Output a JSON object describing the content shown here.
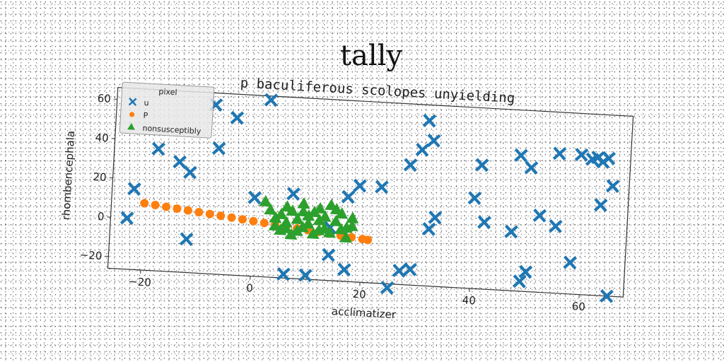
{
  "title": "tally",
  "chart_data": {
    "type": "scatter",
    "subtitle": "p baculiferous scolopes unyielding",
    "xlabel": "acclimatizer",
    "ylabel": "rhombencephala",
    "xlim": [
      -26,
      68
    ],
    "ylim": [
      -26,
      66
    ],
    "xticks": [
      -20,
      0,
      20,
      40,
      60
    ],
    "yticks": [
      -20,
      0,
      20,
      40,
      60
    ],
    "grid": false,
    "legend": {
      "title": "pixel",
      "placement": "top-left"
    },
    "series": [
      {
        "name": "u",
        "marker": "x",
        "color": "#1f77b4",
        "points": [
          [
            -22,
            15
          ],
          [
            -23,
            0
          ],
          [
            -18,
            36
          ],
          [
            -14,
            30
          ],
          [
            -12,
            25
          ],
          [
            -12,
            -9
          ],
          [
            -8,
            60
          ],
          [
            -7,
            38
          ],
          [
            -4,
            54
          ],
          [
            2,
            64
          ],
          [
            0,
            14
          ],
          [
            7,
            17
          ],
          [
            6,
            -24
          ],
          [
            10,
            -24
          ],
          [
            14,
            -13
          ],
          [
            14,
            1
          ],
          [
            17,
            17
          ],
          [
            19,
            23
          ],
          [
            23,
            23
          ],
          [
            17,
            -20
          ],
          [
            25,
            -28
          ],
          [
            27,
            -19
          ],
          [
            28,
            35
          ],
          [
            29,
            -18
          ],
          [
            30,
            43
          ],
          [
            31,
            58
          ],
          [
            32,
            48
          ],
          [
            32,
            3
          ],
          [
            33,
            9
          ],
          [
            40,
            20
          ],
          [
            41,
            37
          ],
          [
            42,
            8
          ],
          [
            47,
            4
          ],
          [
            49,
            -21
          ],
          [
            50,
            -16
          ],
          [
            48,
            43
          ],
          [
            50,
            37
          ],
          [
            52,
            13
          ],
          [
            55,
            8
          ],
          [
            55,
            45
          ],
          [
            58,
            -10
          ],
          [
            59,
            45
          ],
          [
            61,
            43
          ],
          [
            62,
            44
          ],
          [
            63,
            42
          ],
          [
            64,
            44
          ],
          [
            63,
            20
          ],
          [
            65,
            30
          ],
          [
            65,
            -26
          ]
        ]
      },
      {
        "name": "P",
        "marker": "o",
        "color": "#ff7f0e",
        "points": [
          [
            -20,
            8
          ],
          [
            -18,
            7.4
          ],
          [
            -16,
            6.8
          ],
          [
            -14,
            6.2
          ],
          [
            -12,
            5.6
          ],
          [
            -10,
            5
          ],
          [
            -8,
            4.4
          ],
          [
            -6,
            3.8
          ],
          [
            -4,
            3.2
          ],
          [
            -2,
            2.6
          ],
          [
            0,
            2
          ],
          [
            2,
            1.4
          ],
          [
            4,
            0.8
          ],
          [
            6,
            0.2
          ],
          [
            8,
            -0.4
          ],
          [
            10,
            -1
          ],
          [
            12,
            -1.6
          ],
          [
            14,
            -2.2
          ],
          [
            16,
            -2.8
          ],
          [
            18,
            -3.4
          ],
          [
            20,
            -4
          ],
          [
            21,
            -4.3
          ]
        ]
      },
      {
        "name": "nonsusceptibly",
        "marker": "^",
        "color": "#2ca02c",
        "points": [
          [
            2,
            12
          ],
          [
            3,
            8
          ],
          [
            4,
            4
          ],
          [
            4,
            0
          ],
          [
            5,
            6
          ],
          [
            5,
            -2
          ],
          [
            6,
            10
          ],
          [
            6,
            2
          ],
          [
            7,
            -4
          ],
          [
            7,
            8
          ],
          [
            8,
            4
          ],
          [
            8,
            -2
          ],
          [
            9,
            12
          ],
          [
            9,
            0
          ],
          [
            10,
            6
          ],
          [
            10,
            2
          ],
          [
            11,
            -3
          ],
          [
            11,
            8
          ],
          [
            12,
            4
          ],
          [
            12,
            10
          ],
          [
            13,
            0
          ],
          [
            13,
            6
          ],
          [
            14,
            12
          ],
          [
            14,
            -2
          ],
          [
            15,
            4
          ],
          [
            16,
            8
          ],
          [
            16,
            0
          ],
          [
            17,
            -4
          ],
          [
            18,
            2
          ],
          [
            18,
            6
          ],
          [
            6,
            -1
          ],
          [
            9,
            8
          ],
          [
            12,
            -1
          ],
          [
            15,
            10
          ],
          [
            17,
            1
          ]
        ]
      }
    ]
  }
}
